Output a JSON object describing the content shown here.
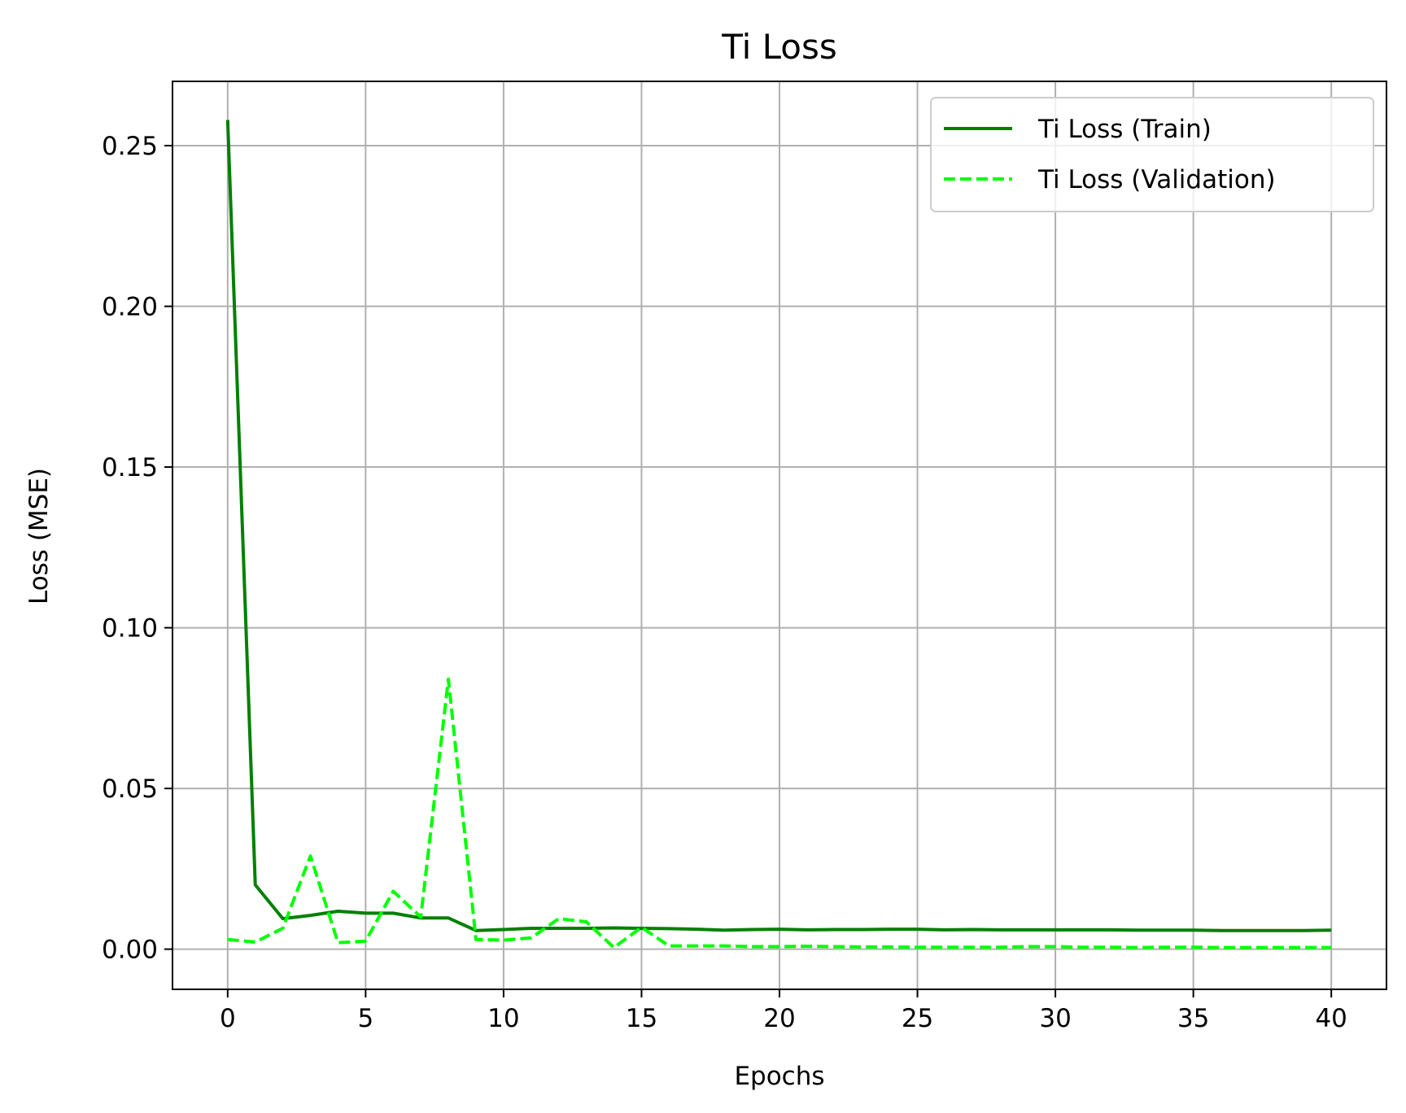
{
  "chart_data": {
    "type": "line",
    "title": "Ti Loss",
    "xlabel": "Epochs",
    "ylabel": "Loss (MSE)",
    "xlim": [
      -2,
      42
    ],
    "ylim": [
      -0.0125,
      0.27
    ],
    "x_ticks": [
      0,
      5,
      10,
      15,
      20,
      25,
      30,
      35,
      40
    ],
    "y_ticks": [
      0.0,
      0.05,
      0.1,
      0.15,
      0.2,
      0.25
    ],
    "x_tick_labels": [
      "0",
      "5",
      "10",
      "15",
      "20",
      "25",
      "30",
      "35",
      "40"
    ],
    "y_tick_labels": [
      "0.00",
      "0.05",
      "0.10",
      "0.15",
      "0.20",
      "0.25"
    ],
    "grid": true,
    "legend_position": "top-right",
    "x": [
      0,
      1,
      2,
      3,
      4,
      5,
      6,
      7,
      8,
      9,
      10,
      11,
      12,
      13,
      14,
      15,
      16,
      17,
      18,
      19,
      20,
      21,
      22,
      23,
      24,
      25,
      26,
      27,
      28,
      29,
      30,
      31,
      32,
      33,
      34,
      35,
      36,
      37,
      38,
      39,
      40
    ],
    "series": [
      {
        "name": "Ti Loss (Train)",
        "color": "#008000",
        "style": "solid",
        "values": [
          0.258,
          0.02,
          0.0095,
          0.0105,
          0.0118,
          0.0112,
          0.0112,
          0.0097,
          0.0097,
          0.0058,
          0.0061,
          0.0065,
          0.0065,
          0.0065,
          0.0066,
          0.0065,
          0.0064,
          0.0062,
          0.0059,
          0.0061,
          0.0062,
          0.006,
          0.0061,
          0.0061,
          0.0062,
          0.0062,
          0.006,
          0.0061,
          0.006,
          0.006,
          0.006,
          0.006,
          0.006,
          0.0059,
          0.0059,
          0.0059,
          0.0058,
          0.0058,
          0.0058,
          0.0058,
          0.0059
        ]
      },
      {
        "name": "Ti Loss (Validation)",
        "color": "#00ff00",
        "style": "dashed",
        "values": [
          0.003,
          0.0022,
          0.0065,
          0.029,
          0.002,
          0.0025,
          0.018,
          0.01,
          0.084,
          0.003,
          0.0028,
          0.0035,
          0.0095,
          0.0085,
          0.0005,
          0.0068,
          0.001,
          0.001,
          0.001,
          0.0008,
          0.0008,
          0.0009,
          0.0008,
          0.0007,
          0.0007,
          0.0006,
          0.0006,
          0.0006,
          0.0006,
          0.0008,
          0.0008,
          0.0006,
          0.0006,
          0.0005,
          0.0006,
          0.0006,
          0.0005,
          0.0005,
          0.0005,
          0.0005,
          0.0005
        ]
      }
    ]
  }
}
